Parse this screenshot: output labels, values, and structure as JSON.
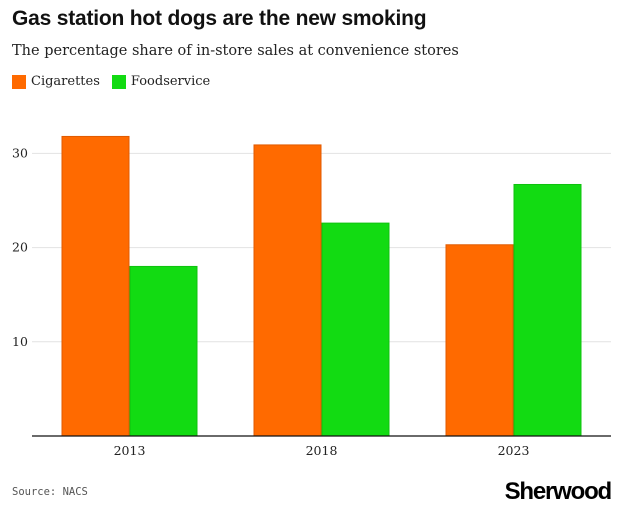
{
  "header": {
    "title": "Gas station hot dogs are the new smoking",
    "subtitle": "The percentage share of in-store sales at convenience stores"
  },
  "legend": {
    "items": [
      {
        "label": "Cigarettes",
        "color": "#ff6a00"
      },
      {
        "label": "Foodservice",
        "color": "#12db12"
      }
    ]
  },
  "footer": {
    "source": "Source: NACS",
    "brand": "Sherwood"
  },
  "chart_data": {
    "type": "bar",
    "title": "Gas station hot dogs are the new smoking",
    "subtitle": "The percentage share of in-store sales at convenience stores",
    "xlabel": "",
    "ylabel": "",
    "categories": [
      "2013",
      "2018",
      "2023"
    ],
    "series": [
      {
        "name": "Cigarettes",
        "color": "#ff6a00",
        "values": [
          31.8,
          30.9,
          20.3
        ]
      },
      {
        "name": "Foodservice",
        "color": "#12db12",
        "values": [
          18.0,
          22.6,
          26.7
        ]
      }
    ],
    "ylim": [
      0,
      33
    ],
    "yticks": [
      10,
      20,
      30
    ],
    "grid": true,
    "legend_position": "top-left"
  }
}
